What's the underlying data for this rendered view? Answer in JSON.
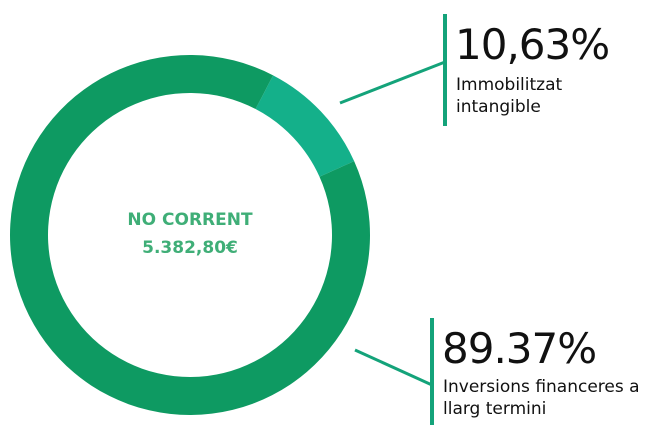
{
  "chart_data": {
    "type": "donut",
    "center_title": "NO CORRENT",
    "center_value": "5.382,80€",
    "categories": [
      "Immobilitzat intangible",
      "Inversions financeres a llarg termini"
    ],
    "values": [
      10.63,
      89.37
    ],
    "value_labels": [
      "10,63%",
      "89.37%"
    ],
    "colors": [
      "#14b08a",
      "#0e9a62"
    ]
  }
}
